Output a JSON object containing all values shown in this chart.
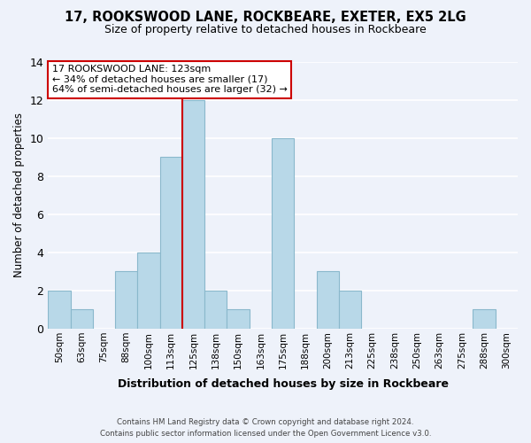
{
  "title": "17, ROOKSWOOD LANE, ROCKBEARE, EXETER, EX5 2LG",
  "subtitle": "Size of property relative to detached houses in Rockbeare",
  "xlabel": "Distribution of detached houses by size in Rockbeare",
  "ylabel": "Number of detached properties",
  "bin_labels": [
    "50sqm",
    "63sqm",
    "75sqm",
    "88sqm",
    "100sqm",
    "113sqm",
    "125sqm",
    "138sqm",
    "150sqm",
    "163sqm",
    "175sqm",
    "188sqm",
    "200sqm",
    "213sqm",
    "225sqm",
    "238sqm",
    "250sqm",
    "263sqm",
    "275sqm",
    "288sqm",
    "300sqm"
  ],
  "bar_heights": [
    2,
    1,
    0,
    3,
    4,
    9,
    12,
    2,
    1,
    0,
    10,
    0,
    3,
    2,
    0,
    0,
    0,
    0,
    0,
    1,
    0
  ],
  "bar_color": "#b8d8e8",
  "bar_edge_color": "#8ab8cc",
  "highlight_color": "#cc0000",
  "ylim": [
    0,
    14
  ],
  "yticks": [
    0,
    2,
    4,
    6,
    8,
    10,
    12,
    14
  ],
  "annotation_title": "17 ROOKSWOOD LANE: 123sqm",
  "annotation_line1": "← 34% of detached houses are smaller (17)",
  "annotation_line2": "64% of semi-detached houses are larger (32) →",
  "annotation_box_color": "#ffffff",
  "annotation_box_edge": "#cc0000",
  "footer1": "Contains HM Land Registry data © Crown copyright and database right 2024.",
  "footer2": "Contains public sector information licensed under the Open Government Licence v3.0.",
  "background_color": "#eef2fa"
}
